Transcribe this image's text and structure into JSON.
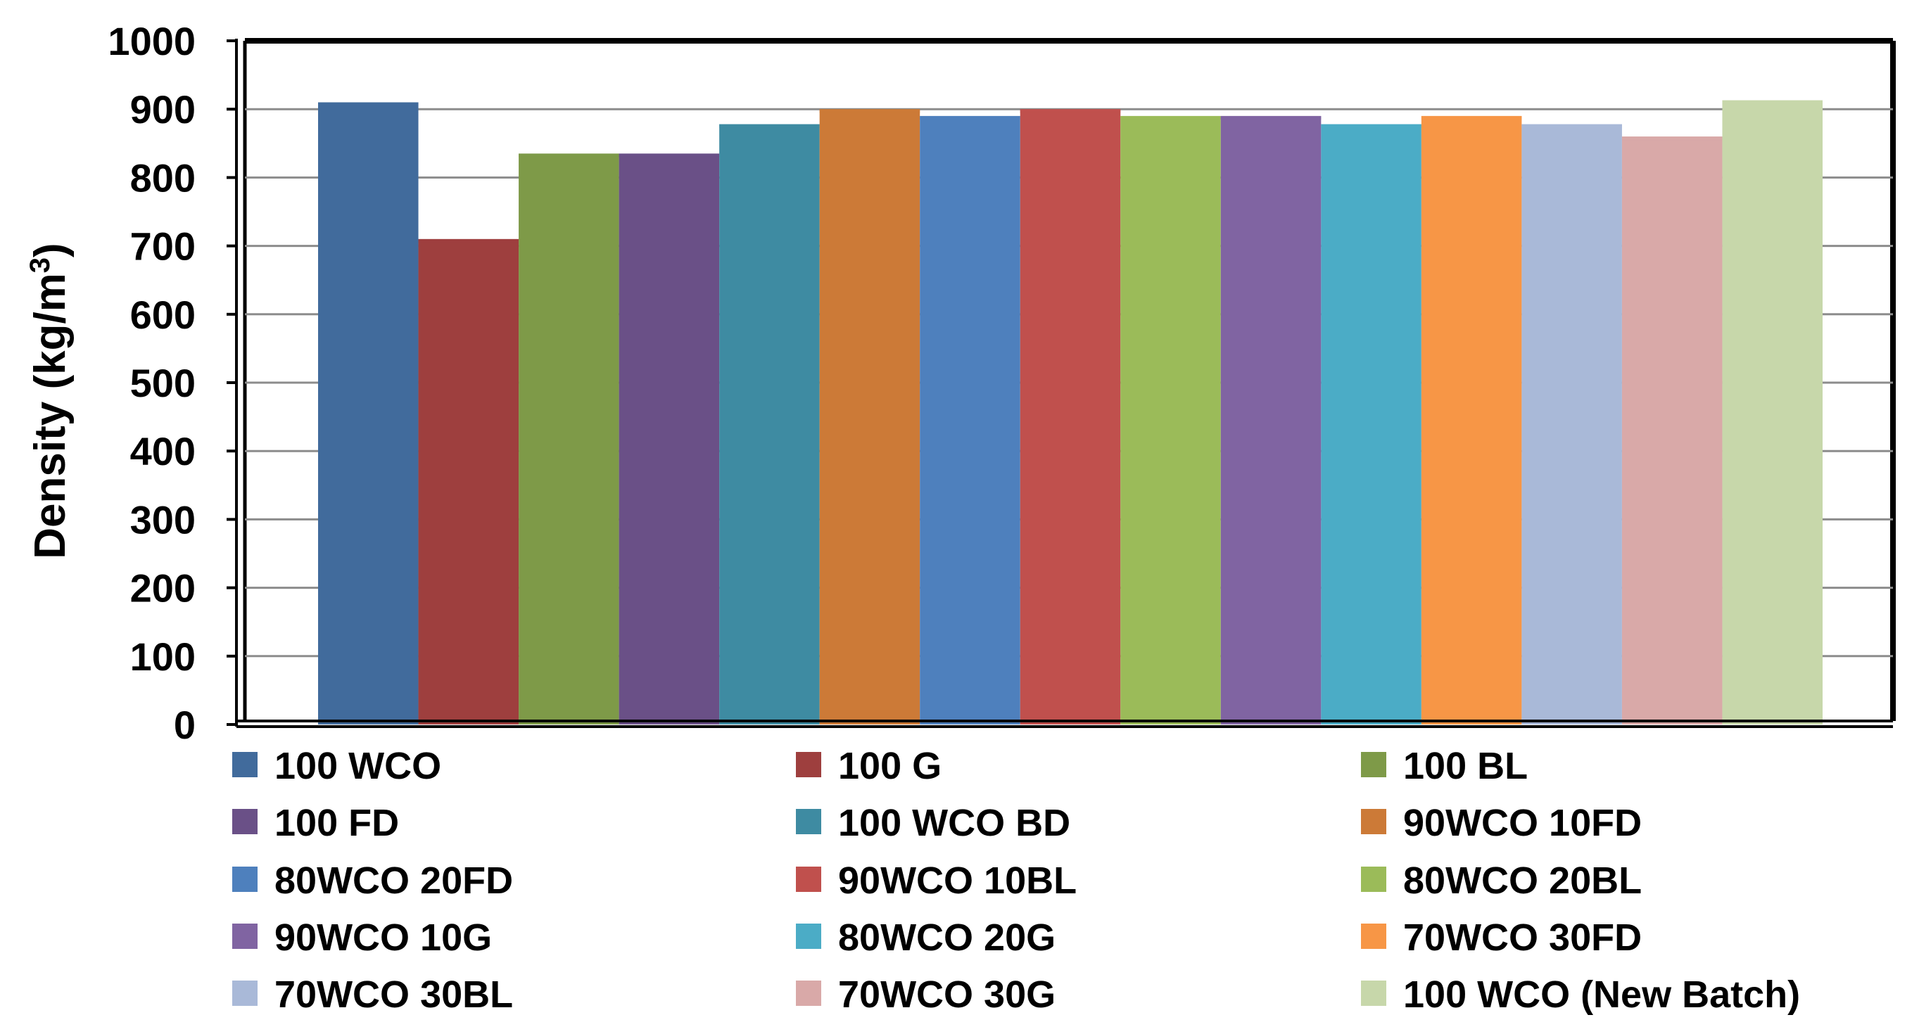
{
  "chart_data": {
    "type": "bar",
    "title": "",
    "xlabel": "",
    "ylabel": {
      "prefix": "Density (kg/m",
      "superscript": "3",
      "suffix": ")"
    },
    "ylim": [
      0,
      1000
    ],
    "yticks": [
      "0",
      "100",
      "200",
      "300",
      "400",
      "500",
      "600",
      "700",
      "800",
      "900",
      "1000"
    ],
    "grid": true,
    "legend_position": "bottom",
    "categories": [
      "100 WCO",
      "100 G",
      "100 BL",
      "100 FD",
      "100 WCO BD",
      "90WCO 10FD",
      "80WCO 20FD",
      "90WCO 10BL",
      "80WCO 20BL",
      "90WCO 10G",
      "80WCO 20G",
      "70WCO 30FD",
      "70WCO 30BL",
      "70WCO 30G",
      "100 WCO (New Batch)"
    ],
    "values": [
      910,
      710,
      835,
      835,
      878,
      900,
      890,
      900,
      890,
      890,
      878,
      890,
      878,
      860,
      913
    ],
    "colors": [
      "#416B9C",
      "#9E3F3E",
      "#7E9A48",
      "#6A5087",
      "#3E8BA2",
      "#CC7A37",
      "#4E80BD",
      "#C0504D",
      "#9BBB59",
      "#8064A2",
      "#4BACC6",
      "#F79646",
      "#A9B9D8",
      "#D9A9A8",
      "#C7D7AA"
    ]
  }
}
